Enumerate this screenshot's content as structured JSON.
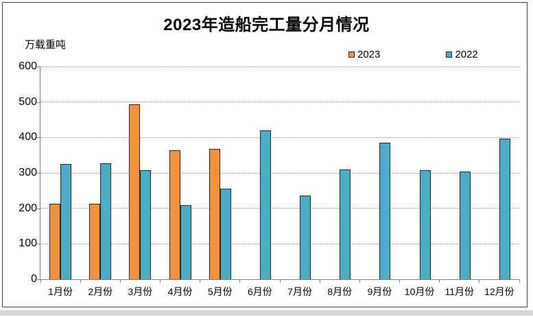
{
  "page": {
    "frame_border_color": "#3f3f3f",
    "bottom_strip_color": "#d6d6d6",
    "background_color": "#ffffff"
  },
  "chart_data": {
    "type": "bar",
    "title": "2023年造船完工量分月情况",
    "unit_label": "万载重吨",
    "categories": [
      "1月份",
      "2月份",
      "3月份",
      "4月份",
      "5月份",
      "6月份",
      "7月份",
      "8月份",
      "9月份",
      "10月份",
      "11月份",
      "12月份"
    ],
    "series": [
      {
        "name": "2023",
        "color": "#F2923E",
        "border_color": "#262626",
        "values": [
          212,
          212,
          493,
          363,
          367,
          null,
          null,
          null,
          null,
          null,
          null,
          null
        ]
      },
      {
        "name": "2022",
        "color": "#4BACC6",
        "border_color": "#262626",
        "values": [
          325,
          327,
          308,
          209,
          256,
          420,
          236,
          309,
          385,
          308,
          303,
          396
        ]
      }
    ],
    "ylim": [
      0,
      600
    ],
    "ytick_interval": 100,
    "yticks": [
      0,
      100,
      200,
      300,
      400,
      500,
      600
    ],
    "xlabel": "",
    "ylabel": "",
    "grid": "horizontal-dotted",
    "legend_position": "top-right"
  }
}
